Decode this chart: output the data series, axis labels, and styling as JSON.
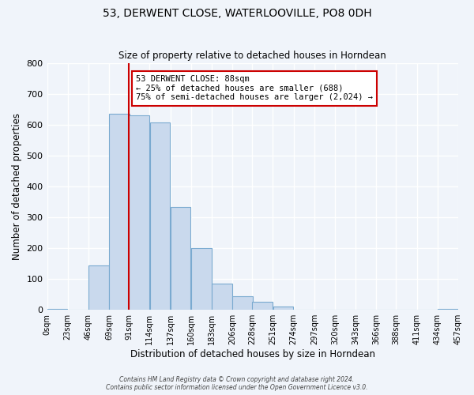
{
  "title": "53, DERWENT CLOSE, WATERLOOVILLE, PO8 0DH",
  "subtitle": "Size of property relative to detached houses in Horndean",
  "xlabel": "Distribution of detached houses by size in Horndean",
  "ylabel": "Number of detached properties",
  "bar_color": "#c9d9ed",
  "bar_edge_color": "#7aaad0",
  "background_color": "#f0f4fa",
  "grid_color": "#ffffff",
  "bin_edges": [
    0,
    23,
    46,
    69,
    91,
    114,
    137,
    160,
    183,
    206,
    228,
    251,
    274,
    297,
    320,
    343,
    366,
    388,
    411,
    434,
    457
  ],
  "bin_labels": [
    "0sqm",
    "23sqm",
    "46sqm",
    "69sqm",
    "91sqm",
    "114sqm",
    "137sqm",
    "160sqm",
    "183sqm",
    "206sqm",
    "228sqm",
    "251sqm",
    "274sqm",
    "297sqm",
    "320sqm",
    "343sqm",
    "366sqm",
    "388sqm",
    "411sqm",
    "434sqm",
    "457sqm"
  ],
  "counts": [
    3,
    0,
    143,
    636,
    630,
    608,
    332,
    200,
    85,
    45,
    26,
    11,
    0,
    0,
    0,
    0,
    0,
    0,
    0,
    3
  ],
  "property_size": 88,
  "vline_x": 91,
  "annotation_text": "53 DERWENT CLOSE: 88sqm\n← 25% of detached houses are smaller (688)\n75% of semi-detached houses are larger (2,024) →",
  "annotation_box_color": "#ffffff",
  "annotation_box_edge_color": "#cc0000",
  "vline_color": "#cc0000",
  "ylim": [
    0,
    800
  ],
  "yticks": [
    0,
    100,
    200,
    300,
    400,
    500,
    600,
    700,
    800
  ],
  "footer_line1": "Contains HM Land Registry data © Crown copyright and database right 2024.",
  "footer_line2": "Contains public sector information licensed under the Open Government Licence v3.0."
}
